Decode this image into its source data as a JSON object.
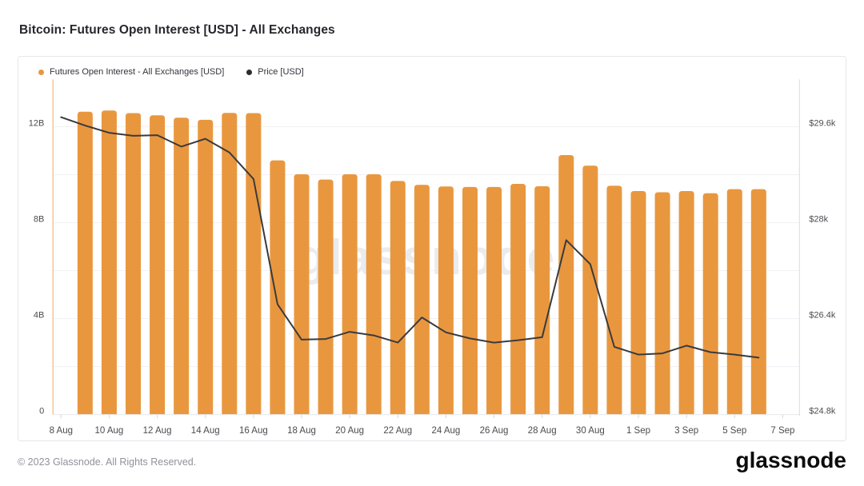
{
  "header": {
    "title": "Bitcoin: Futures Open Interest [USD] - All Exchanges"
  },
  "legend": {
    "items": [
      {
        "label": "Futures Open Interest - All Exchanges [USD]",
        "color": "#E9973E"
      },
      {
        "label": "Price [USD]",
        "color": "#2B2B31"
      }
    ]
  },
  "watermark": "glassnode",
  "footer": {
    "copyright": "© 2023 Glassnode. All Rights Reserved.",
    "brand": "glassnode"
  },
  "chart_data": {
    "type": "bar+line",
    "title": "Bitcoin: Futures Open Interest [USD] - All Exchanges",
    "dates": [
      "8 Aug",
      "9 Aug",
      "10 Aug",
      "11 Aug",
      "12 Aug",
      "13 Aug",
      "14 Aug",
      "15 Aug",
      "16 Aug",
      "17 Aug",
      "18 Aug",
      "19 Aug",
      "20 Aug",
      "21 Aug",
      "22 Aug",
      "23 Aug",
      "24 Aug",
      "25 Aug",
      "26 Aug",
      "27 Aug",
      "28 Aug",
      "29 Aug",
      "30 Aug",
      "31 Aug",
      "1 Sep",
      "2 Sep",
      "3 Sep",
      "4 Sep",
      "5 Sep",
      "6 Sep"
    ],
    "series": [
      {
        "name": "Futures Open Interest - All Exchanges [USD]",
        "type": "bar",
        "axis": "left",
        "unit": "billions USD",
        "color": "#E9973E",
        "values": [
          null,
          12.63,
          12.68,
          12.57,
          12.48,
          12.38,
          12.29,
          12.58,
          12.57,
          10.6,
          10.02,
          9.8,
          10.02,
          10.02,
          9.74,
          9.58,
          9.51,
          9.49,
          9.49,
          9.62,
          9.52,
          10.82,
          10.38,
          9.54,
          9.32,
          9.27,
          9.32,
          9.23,
          9.4,
          9.4
        ]
      },
      {
        "name": "Price [USD]",
        "type": "line",
        "axis": "right",
        "unit": "k USD",
        "color": "#3A3A3E",
        "values": [
          29.76,
          29.62,
          29.5,
          29.45,
          29.46,
          29.27,
          29.4,
          29.17,
          28.73,
          26.64,
          26.05,
          26.06,
          26.18,
          26.12,
          26.0,
          26.42,
          26.17,
          26.07,
          26.0,
          26.04,
          26.09,
          27.71,
          27.31,
          25.93,
          25.8,
          25.82,
          25.95,
          25.84,
          25.8,
          25.75
        ]
      }
    ],
    "left_axis": {
      "tick_labels": [
        "0",
        "4B",
        "8B",
        "12B"
      ],
      "tick_values": [
        0,
        4,
        8,
        12
      ],
      "grid_step_billions": 2,
      "min": 0
    },
    "right_axis": {
      "tick_labels": [
        "$24.8k",
        "$26.4k",
        "$28k",
        "$29.6k"
      ],
      "tick_values": [
        24.8,
        26.4,
        28,
        29.6
      ]
    },
    "x_tick_labels": [
      "8 Aug",
      "10 Aug",
      "12 Aug",
      "14 Aug",
      "16 Aug",
      "18 Aug",
      "20 Aug",
      "22 Aug",
      "24 Aug",
      "26 Aug",
      "28 Aug",
      "30 Aug",
      "1 Sep",
      "3 Sep",
      "5 Sep",
      "7 Sep"
    ],
    "grid": "horizontal-only",
    "legend_position": "top-left"
  }
}
